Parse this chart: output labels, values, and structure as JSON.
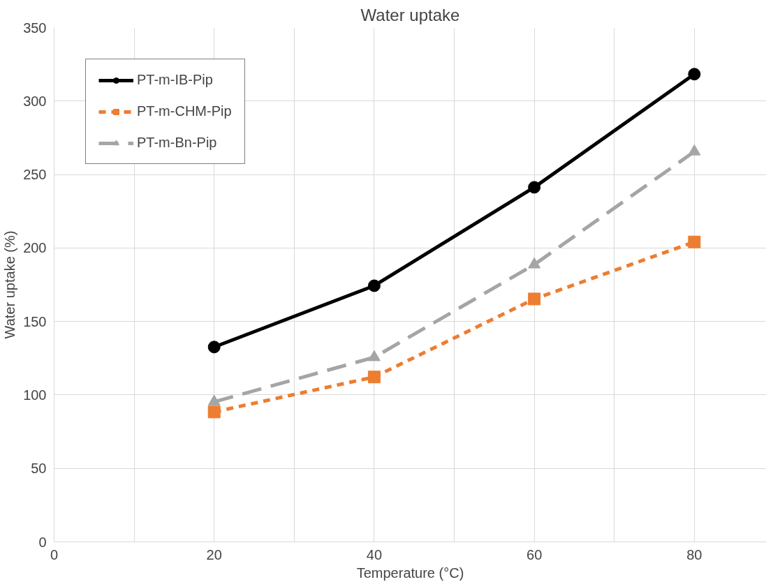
{
  "chart_data": {
    "type": "line",
    "title": "Water uptake",
    "xlabel": "Temperature (°C)",
    "ylabel": "Water uptake (%)",
    "x": [
      20,
      40,
      60,
      80
    ],
    "series": [
      {
        "name": "PT-m-IB-Pip",
        "color": "#000000",
        "values": [
          132.6,
          174.3,
          241.3,
          318.3
        ],
        "marker": "circle",
        "line_style": "solid"
      },
      {
        "name": "PT-m-CHM-Pip",
        "color": "#ed7d31",
        "values": [
          88.4,
          112.2,
          165.3,
          204.1
        ],
        "marker": "square",
        "line_style": "dashed"
      },
      {
        "name": "PT-m-Bn-Pip",
        "color": "#a5a5a5",
        "values": [
          95.3,
          125.6,
          188.7,
          265.6
        ],
        "marker": "triangle",
        "line_style": "longdash"
      }
    ],
    "xlim": [
      0,
      89
    ],
    "ylim": [
      0,
      350
    ],
    "xticks": [
      0,
      {
        "value": 10,
        "label": null
      },
      20,
      {
        "value": 30,
        "label": null
      },
      40,
      {
        "value": 50,
        "label": null
      },
      60,
      {
        "value": 70,
        "label": null
      },
      80
    ],
    "yticks": [
      0,
      50,
      100,
      150,
      200,
      250,
      300,
      350
    ],
    "grid": true,
    "legend": "top left"
  }
}
